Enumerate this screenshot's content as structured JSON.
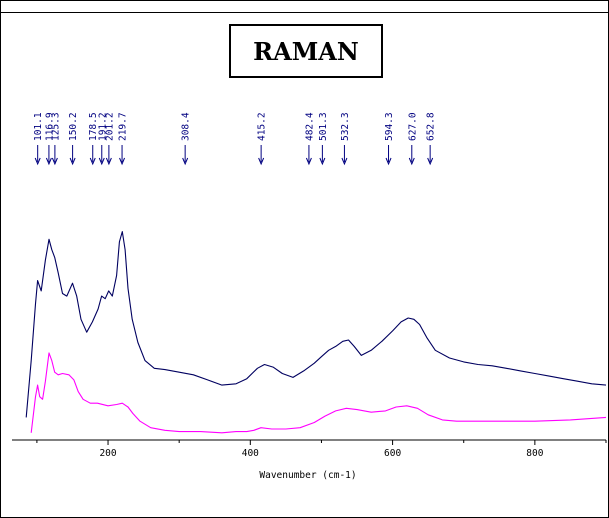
{
  "chart_data": {
    "type": "line",
    "title": "RAMAN",
    "xlabel": "Wavenumber (cm-1)",
    "ylabel": "",
    "xlim": [
      65,
      900
    ],
    "ylim": [
      0,
      100
    ],
    "x_ticks": [
      200,
      400,
      600,
      800
    ],
    "peak_markers": [
      101.1,
      116.9,
      125.3,
      150.2,
      178.5,
      191.2,
      201.2,
      219.7,
      308.4,
      415.2,
      482.4,
      501.3,
      532.3,
      594.3,
      627.0,
      652.8
    ],
    "peak_labels": [
      "101.1",
      "116.9",
      "125.3",
      "150.2",
      "178.5",
      "191.2",
      "201.2",
      "219.7",
      "308.4",
      "415.2",
      "482.4",
      "501.3",
      "532.3",
      "594.3",
      "627.0",
      "652.8"
    ],
    "series": [
      {
        "color": "#000060",
        "x": [
          85,
          92,
          98,
          101,
          106,
          112,
          117,
          121,
          125,
          130,
          136,
          142,
          150,
          156,
          162,
          170,
          178,
          186,
          191,
          196,
          201,
          206,
          212,
          216,
          220,
          224,
          228,
          234,
          242,
          252,
          265,
          280,
          300,
          320,
          340,
          360,
          380,
          395,
          410,
          420,
          432,
          445,
          460,
          475,
          490,
          500,
          510,
          520,
          530,
          538,
          546,
          556,
          570,
          585,
          600,
          612,
          622,
          630,
          638,
          648,
          660,
          680,
          700,
          720,
          740,
          760,
          780,
          800,
          820,
          840,
          860,
          880,
          900
        ],
        "y": [
          8,
          30,
          52,
          61,
          57,
          69,
          77,
          73,
          70,
          64,
          56,
          55,
          60,
          55,
          46,
          41,
          45,
          50,
          55,
          54,
          57,
          55,
          63,
          76,
          80,
          73,
          58,
          46,
          37,
          30,
          27,
          26.5,
          25.5,
          24.5,
          22.5,
          20.5,
          21,
          23,
          27,
          28.5,
          27.5,
          25,
          23.5,
          26,
          29,
          31.5,
          34,
          35.5,
          37.5,
          38,
          35.5,
          32,
          34,
          37.5,
          41.5,
          45,
          46.5,
          46,
          44,
          39,
          34,
          31,
          29.5,
          28.5,
          28,
          27,
          26,
          25,
          24,
          23,
          22,
          21,
          20.5
        ]
      },
      {
        "color": "#ff00ff",
        "x": [
          92,
          98,
          101,
          104,
          108,
          112,
          117,
          121,
          125,
          130,
          136,
          145,
          152,
          158,
          165,
          175,
          185,
          200,
          212,
          220,
          228,
          235,
          245,
          260,
          280,
          300,
          330,
          360,
          380,
          395,
          405,
          415,
          430,
          450,
          470,
          490,
          505,
          520,
          535,
          550,
          570,
          590,
          605,
          620,
          635,
          650,
          670,
          690,
          720,
          760,
          800,
          850,
          900
        ],
        "y": [
          2,
          16,
          20.5,
          16,
          15,
          22,
          33,
          30,
          25.5,
          24.5,
          25,
          24.5,
          22.5,
          18,
          15,
          13.5,
          13.5,
          12.5,
          13,
          13.5,
          12,
          9.5,
          6.5,
          4,
          3,
          2.5,
          2.5,
          2,
          2.5,
          2.5,
          3,
          4,
          3.5,
          3.5,
          4,
          6,
          8.5,
          10.5,
          11.5,
          11,
          10,
          10.5,
          12,
          12.5,
          11.5,
          9,
          7,
          6.5,
          6.5,
          6.5,
          6.5,
          7,
          8
        ]
      }
    ]
  }
}
